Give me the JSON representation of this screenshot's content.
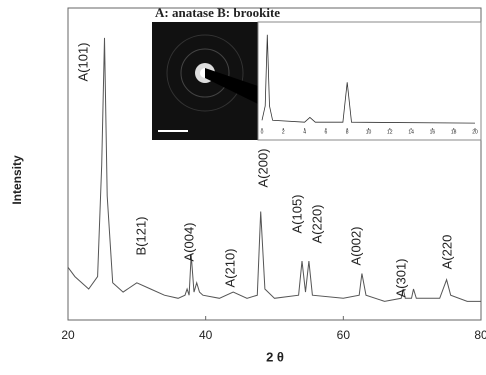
{
  "chart_data": [
    {
      "type": "line",
      "x_label": "2 θ",
      "y_label": "Intensity",
      "legend_text": "A: anatase  B: brookite",
      "annotations": [
        "A(101)",
        "B(121)",
        "A(004)",
        "A(210)",
        "A(200)",
        "A(105)",
        "A(220)",
        "A(002)",
        "A(301)",
        "A(220"
      ],
      "xlim": [
        20,
        80
      ],
      "xticks": [
        20,
        40,
        60,
        80
      ],
      "ylim": [
        0,
        100
      ],
      "color": "#555555",
      "x": [
        20,
        21,
        23,
        24.3,
        24.9,
        25.3,
        25.7,
        26.5,
        28,
        30,
        32,
        34,
        36,
        37,
        37.3,
        37.6,
        37.9,
        38.3,
        38.7,
        39.1,
        39.6,
        42,
        44,
        46,
        47.5,
        48,
        48.6,
        50,
        53.5,
        54,
        54.5,
        55,
        55.5,
        60,
        62.3,
        62.7,
        63.3,
        66,
        68.4,
        68.7,
        69,
        69.9,
        70.2,
        70.6,
        74,
        75,
        75.6,
        78,
        80
      ],
      "values": [
        17,
        14,
        10,
        14,
        50,
        91,
        40,
        12,
        9,
        12,
        10,
        8,
        7,
        8,
        10,
        8,
        21,
        9,
        12,
        9,
        8,
        7,
        9,
        7,
        8,
        35,
        10,
        7,
        8,
        19,
        9,
        19,
        8,
        7,
        8,
        15,
        8,
        6,
        7,
        10,
        7,
        7,
        10,
        7,
        7,
        13,
        8,
        6,
        6
      ]
    },
    {
      "type": "line",
      "xlim": [
        0,
        20
      ],
      "xticks": [
        0,
        2,
        4,
        6,
        8,
        10,
        12,
        14,
        16,
        18,
        20
      ],
      "ylim": [
        0,
        100
      ],
      "color": "#333333",
      "x": [
        0,
        0.3,
        0.5,
        0.7,
        1,
        4,
        4.5,
        5,
        7.6,
        8,
        8.4,
        20
      ],
      "values": [
        5,
        20,
        95,
        20,
        5,
        3,
        8,
        3,
        3,
        45,
        3,
        2
      ]
    }
  ]
}
